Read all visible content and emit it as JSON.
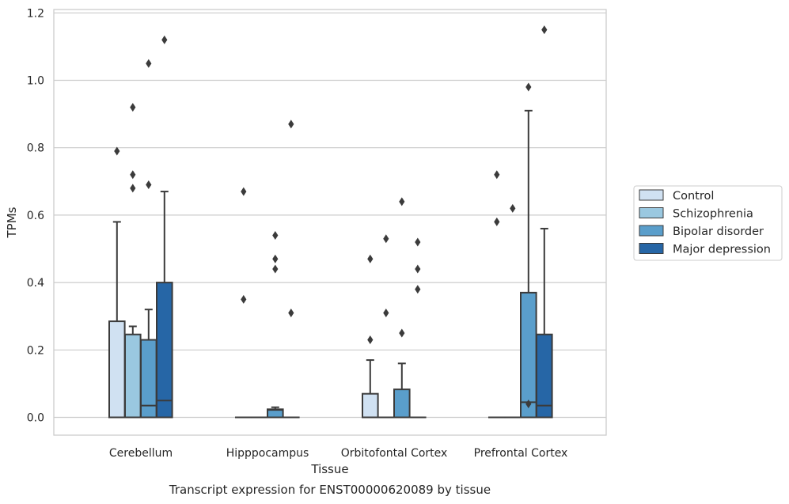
{
  "chart_data": {
    "type": "box",
    "title": "Transcript expression for ENST00000620089 by tissue",
    "xlabel": "Tissue",
    "ylabel": "TPMs",
    "ylim": [
      -0.055,
      1.21
    ],
    "yticks": [
      "0.0",
      "0.2",
      "0.4",
      "0.6",
      "0.8",
      "1.0",
      "1.2"
    ],
    "ytick_values": [
      0.0,
      0.2,
      0.4,
      0.6,
      0.8,
      1.0,
      1.2
    ],
    "grid": "horizontal",
    "legend_position": "right",
    "categories": [
      "Cerebellum",
      "Hipppocampus",
      "Orbitofontal Cortex",
      "Prefrontal Cortex"
    ],
    "series": [
      {
        "name": "Control",
        "color": "#d0e1f2",
        "boxes": [
          {
            "q1": 0.0,
            "median": 0.0,
            "q3": 0.285,
            "whisker_low": 0.0,
            "whisker_high": 0.58,
            "outliers": [
              0.79
            ]
          },
          {
            "q1": 0.0,
            "median": 0.0,
            "q3": 0.0,
            "whisker_low": 0.0,
            "whisker_high": 0.0,
            "outliers": [
              0.35,
              0.67
            ]
          },
          {
            "q1": 0.0,
            "median": 0.0,
            "q3": 0.07,
            "whisker_low": 0.0,
            "whisker_high": 0.17,
            "outliers": [
              0.23,
              0.47
            ]
          },
          {
            "q1": 0.0,
            "median": 0.0,
            "q3": 0.0,
            "whisker_low": 0.0,
            "whisker_high": 0.0,
            "outliers": [
              0.58,
              0.72
            ]
          }
        ]
      },
      {
        "name": "Schizophrenia",
        "color": "#9ac8e0",
        "boxes": [
          {
            "q1": 0.0,
            "median": 0.0,
            "q3": 0.246,
            "whisker_low": 0.0,
            "whisker_high": 0.27,
            "outliers": [
              0.68,
              0.72,
              0.92
            ]
          },
          {
            "q1": 0.0,
            "median": 0.0,
            "q3": 0.0,
            "whisker_low": 0.0,
            "whisker_high": 0.0,
            "outliers": []
          },
          {
            "q1": 0.0,
            "median": 0.0,
            "q3": 0.0,
            "whisker_low": 0.0,
            "whisker_high": 0.0,
            "outliers": [
              0.31,
              0.53
            ]
          },
          {
            "q1": 0.0,
            "median": 0.0,
            "q3": 0.0,
            "whisker_low": 0.0,
            "whisker_high": 0.0,
            "outliers": [
              0.62
            ]
          }
        ]
      },
      {
        "name": "Bipolar disorder",
        "color": "#5a9ecb",
        "boxes": [
          {
            "q1": 0.0,
            "median": 0.035,
            "q3": 0.23,
            "whisker_low": 0.0,
            "whisker_high": 0.32,
            "outliers": [
              0.69,
              1.05
            ]
          },
          {
            "q1": 0.0,
            "median": 0.022,
            "q3": 0.024,
            "whisker_low": 0.0,
            "whisker_high": 0.03,
            "outliers": [
              0.44,
              0.47,
              0.54
            ]
          },
          {
            "q1": 0.0,
            "median": 0.0,
            "q3": 0.083,
            "whisker_low": 0.0,
            "whisker_high": 0.16,
            "outliers": [
              0.25,
              0.64
            ]
          },
          {
            "q1": 0.0,
            "median": 0.045,
            "q3": 0.37,
            "whisker_low": 0.0,
            "whisker_high": 0.91,
            "outliers": [
              0.04,
              0.98
            ]
          }
        ]
      },
      {
        "name": "Major depression",
        "color": "#2666a6",
        "boxes": [
          {
            "q1": 0.0,
            "median": 0.05,
            "q3": 0.4,
            "whisker_low": 0.0,
            "whisker_high": 0.67,
            "outliers": [
              1.12
            ]
          },
          {
            "q1": 0.0,
            "median": 0.0,
            "q3": 0.0,
            "whisker_low": 0.0,
            "whisker_high": 0.0,
            "outliers": [
              0.31,
              0.87
            ]
          },
          {
            "q1": 0.0,
            "median": 0.0,
            "q3": 0.0,
            "whisker_low": 0.0,
            "whisker_high": 0.0,
            "outliers": [
              0.38,
              0.44,
              0.52
            ]
          },
          {
            "q1": 0.0,
            "median": 0.035,
            "q3": 0.246,
            "whisker_low": 0.0,
            "whisker_high": 0.56,
            "outliers": [
              1.15
            ]
          }
        ]
      }
    ]
  }
}
